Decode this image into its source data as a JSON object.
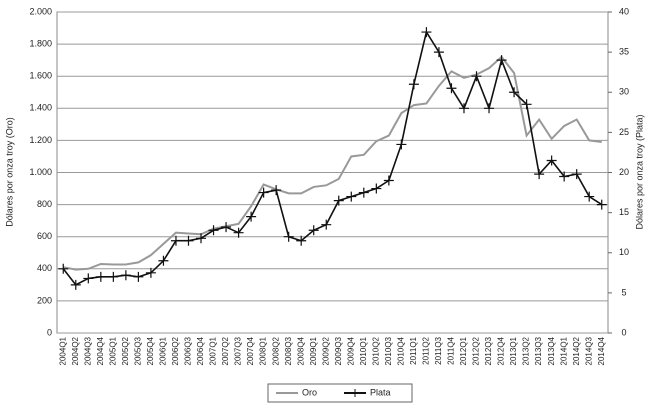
{
  "chart_data": {
    "type": "line",
    "categories": [
      "2004Q1",
      "2004Q2",
      "2004Q3",
      "2004Q4",
      "2005Q1",
      "2005Q2",
      "2005Q3",
      "2005Q4",
      "2006Q1",
      "2006Q2",
      "2006Q3",
      "2006Q4",
      "2007Q1",
      "2007Q2",
      "2007Q3",
      "2007Q4",
      "2008Q1",
      "2008Q2",
      "2008Q3",
      "2008Q4",
      "2009Q1",
      "2009Q2",
      "2009Q3",
      "2009Q4",
      "2010Q1",
      "2010Q2",
      "2010Q3",
      "2010Q4",
      "2011Q1",
      "2011Q2",
      "2011Q3",
      "2011Q4",
      "2012Q1",
      "2012Q2",
      "2012Q3",
      "2012Q4",
      "2013Q1",
      "2013Q2",
      "2013Q3",
      "2013Q4",
      "2014Q1",
      "2014Q2",
      "2014Q3",
      "2014Q4"
    ],
    "series": [
      {
        "name": "Oro",
        "color": "#999999",
        "axis": "y",
        "values": [
          410,
          395,
          400,
          430,
          427,
          427,
          440,
          485,
          555,
          625,
          620,
          615,
          650,
          665,
          680,
          790,
          925,
          895,
          870,
          870,
          910,
          920,
          960,
          1100,
          1110,
          1195,
          1230,
          1370,
          1420,
          1430,
          1540,
          1630,
          1590,
          1610,
          1650,
          1720,
          1620,
          1230,
          1330,
          1210,
          1290,
          1330,
          1200,
          1190
        ]
      },
      {
        "name": "Plata",
        "color": "#111111",
        "axis": "y2",
        "values": [
          8,
          6,
          6.8,
          7,
          7,
          7.2,
          7,
          7.5,
          9,
          11.5,
          11.5,
          11.8,
          12.8,
          13.2,
          12.5,
          14.5,
          17.5,
          17.8,
          12,
          11.5,
          12.8,
          13.5,
          16.5,
          17,
          17.5,
          18,
          19,
          23.5,
          31,
          37.5,
          35,
          30.5,
          28,
          32,
          28,
          34,
          30,
          28.5,
          19.8,
          21.5,
          19.5,
          19.8,
          17,
          16
        ]
      }
    ],
    "ylabel": "Dólares por onza troy (Oro)",
    "y2label": "Dólares por onza troy (Plata)",
    "ylim": [
      0,
      2000
    ],
    "yticks": [
      0,
      200,
      400,
      600,
      800,
      {
        "value": 1000,
        "label": "1.000"
      },
      {
        "value": 1200,
        "label": "1.200"
      },
      {
        "value": 1400,
        "label": "1.400"
      },
      {
        "value": 1600,
        "label": "1.600"
      },
      {
        "value": 1800,
        "label": "1.800"
      },
      {
        "value": 2000,
        "label": "2.000"
      }
    ],
    "y2lim": [
      0,
      40
    ],
    "y2ticks": [
      0,
      5,
      10,
      15,
      20,
      25,
      30,
      35,
      40
    ],
    "grid": true
  }
}
